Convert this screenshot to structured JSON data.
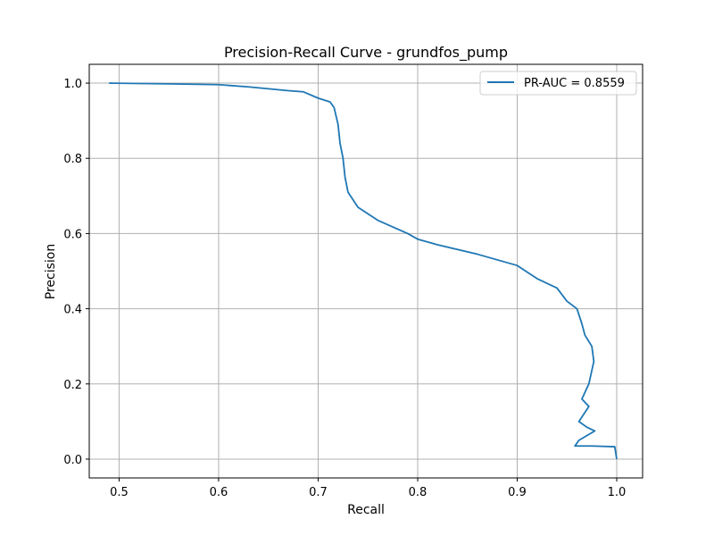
{
  "chart_data": {
    "type": "line",
    "title": "Precision-Recall Curve - grundfos_pump",
    "xlabel": "Recall",
    "ylabel": "Precision",
    "xlim": [
      0.47,
      1.026
    ],
    "ylim": [
      -0.05,
      1.05
    ],
    "x_ticks": [
      0.5,
      0.6,
      0.7,
      0.8,
      0.9,
      1.0
    ],
    "x_tick_labels": [
      "0.5",
      "0.6",
      "0.7",
      "0.8",
      "0.9",
      "1.0"
    ],
    "y_ticks": [
      0.0,
      0.2,
      0.4,
      0.6,
      0.8,
      1.0
    ],
    "y_tick_labels": [
      "0.0",
      "0.2",
      "0.4",
      "0.6",
      "0.8",
      "1.0"
    ],
    "grid": true,
    "legend_position": "top-right",
    "series": [
      {
        "name": "PR-AUC = 0.8559",
        "color": "#1f77b4",
        "points": [
          [
            0.49,
            1.0
          ],
          [
            0.55,
            0.998
          ],
          [
            0.6,
            0.996
          ],
          [
            0.63,
            0.99
          ],
          [
            0.67,
            0.98
          ],
          [
            0.685,
            0.977
          ],
          [
            0.7,
            0.96
          ],
          [
            0.712,
            0.95
          ],
          [
            0.716,
            0.935
          ],
          [
            0.72,
            0.89
          ],
          [
            0.722,
            0.84
          ],
          [
            0.725,
            0.8
          ],
          [
            0.727,
            0.75
          ],
          [
            0.73,
            0.71
          ],
          [
            0.74,
            0.67
          ],
          [
            0.76,
            0.635
          ],
          [
            0.79,
            0.6
          ],
          [
            0.8,
            0.585
          ],
          [
            0.82,
            0.57
          ],
          [
            0.86,
            0.545
          ],
          [
            0.9,
            0.515
          ],
          [
            0.92,
            0.48
          ],
          [
            0.94,
            0.455
          ],
          [
            0.95,
            0.42
          ],
          [
            0.96,
            0.4
          ],
          [
            0.965,
            0.36
          ],
          [
            0.968,
            0.33
          ],
          [
            0.975,
            0.3
          ],
          [
            0.977,
            0.26
          ],
          [
            0.972,
            0.2
          ],
          [
            0.965,
            0.16
          ],
          [
            0.972,
            0.14
          ],
          [
            0.962,
            0.1
          ],
          [
            0.97,
            0.085
          ],
          [
            0.978,
            0.075
          ],
          [
            0.962,
            0.05
          ],
          [
            0.958,
            0.035
          ],
          [
            0.975,
            0.035
          ],
          [
            0.998,
            0.033
          ],
          [
            1.0,
            0.0
          ]
        ]
      }
    ]
  }
}
